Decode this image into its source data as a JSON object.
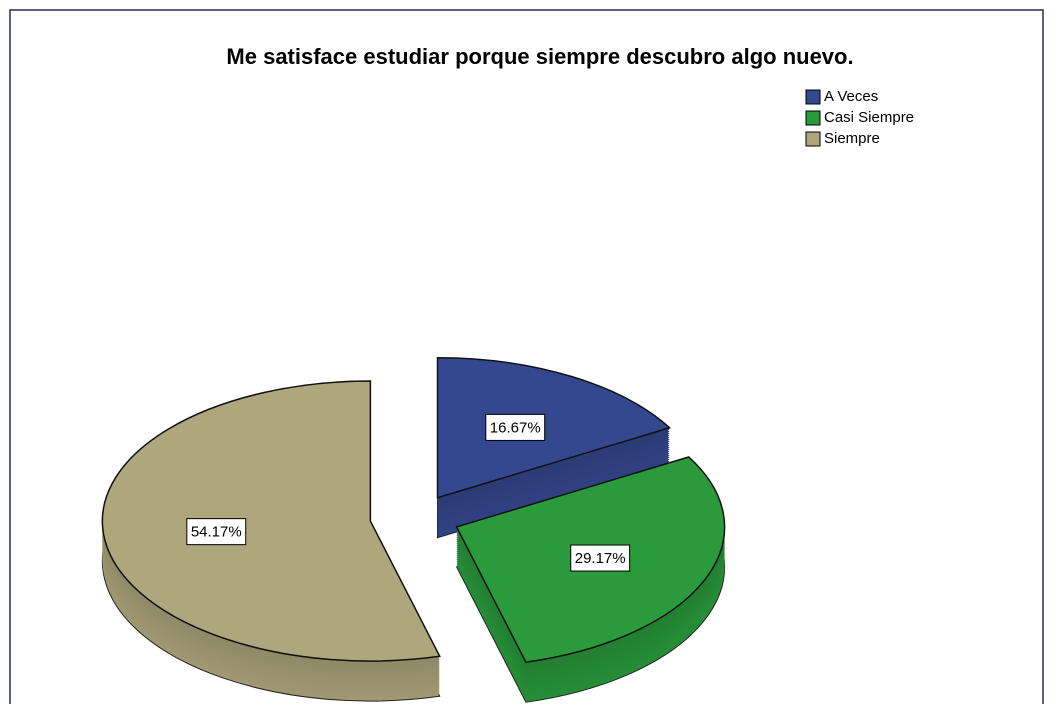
{
  "chart_data": {
    "type": "pie",
    "title": "Me satisface estudiar porque siempre descubro algo nuevo.",
    "categories": [
      "A Veces",
      "Casi Siempre",
      "Siempre"
    ],
    "values": [
      16.67,
      29.17,
      54.17
    ],
    "value_labels": [
      "16.67%",
      "29.17%",
      "54.17%"
    ],
    "colors": [
      "#34488f",
      "#2a9a3c",
      "#aea67c"
    ],
    "legend": "upper right"
  }
}
